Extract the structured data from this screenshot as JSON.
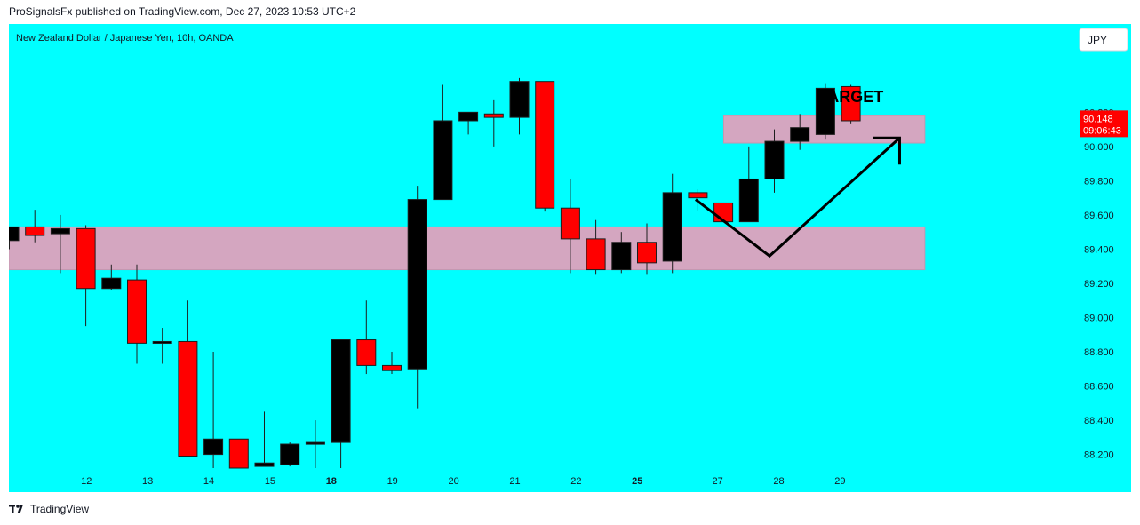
{
  "header": {
    "published": "ProSignalsFx published on TradingView.com, Dec 27, 2023 10:53 UTC+2"
  },
  "footer": {
    "brand": "TradingView"
  },
  "colors": {
    "background": "#00ffff",
    "zone": "#d4a6c0",
    "bull": "#000000",
    "bear": "#ff0000",
    "price_tag": "#ff0000"
  },
  "chart_data": {
    "type": "candlestick",
    "title": "New Zealand Dollar / Japanese Yen, 10h, OANDA",
    "currency_button": "JPY",
    "ylim": [
      88.12,
      90.56
    ],
    "y_ticks": [
      "90.200",
      "90.000",
      "89.800",
      "89.600",
      "89.400",
      "89.200",
      "89.000",
      "88.800",
      "88.600",
      "88.400",
      "88.200"
    ],
    "x_labels": [
      {
        "label": "12",
        "pos": 4,
        "bold": false
      },
      {
        "label": "13",
        "pos": 6.4,
        "bold": false
      },
      {
        "label": "14",
        "pos": 8.8,
        "bold": false
      },
      {
        "label": "15",
        "pos": 11.2,
        "bold": false
      },
      {
        "label": "18",
        "pos": 13.6,
        "bold": true
      },
      {
        "label": "19",
        "pos": 16,
        "bold": false
      },
      {
        "label": "20",
        "pos": 18.4,
        "bold": false
      },
      {
        "label": "21",
        "pos": 20.8,
        "bold": false
      },
      {
        "label": "22",
        "pos": 23.2,
        "bold": false
      },
      {
        "label": "25",
        "pos": 25.6,
        "bold": true
      },
      {
        "label": "27",
        "pos": 28.75,
        "bold": false
      },
      {
        "label": "28",
        "pos": 31.15,
        "bold": false
      },
      {
        "label": "29",
        "pos": 33.55,
        "bold": false
      }
    ],
    "candles": [
      {
        "o": 89.45,
        "h": 89.53,
        "l": 89.4,
        "c": 89.53
      },
      {
        "o": 89.53,
        "h": 89.63,
        "l": 89.44,
        "c": 89.48
      },
      {
        "o": 89.49,
        "h": 89.6,
        "l": 89.26,
        "c": 89.52
      },
      {
        "o": 89.52,
        "h": 89.54,
        "l": 88.95,
        "c": 89.17
      },
      {
        "o": 89.17,
        "h": 89.31,
        "l": 89.16,
        "c": 89.23
      },
      {
        "o": 89.22,
        "h": 89.31,
        "l": 88.73,
        "c": 88.85
      },
      {
        "o": 88.85,
        "h": 88.94,
        "l": 88.73,
        "c": 88.86
      },
      {
        "o": 88.86,
        "h": 89.1,
        "l": 88.19,
        "c": 88.19
      },
      {
        "o": 88.2,
        "h": 88.8,
        "l": 88.12,
        "c": 88.29
      },
      {
        "o": 88.29,
        "h": 88.29,
        "l": 88.12,
        "c": 88.12
      },
      {
        "o": 88.13,
        "h": 88.45,
        "l": 88.13,
        "c": 88.15
      },
      {
        "o": 88.14,
        "h": 88.27,
        "l": 88.13,
        "c": 88.26
      },
      {
        "o": 88.26,
        "h": 88.4,
        "l": 88.12,
        "c": 88.27
      },
      {
        "o": 88.27,
        "h": 88.87,
        "l": 88.12,
        "c": 88.87
      },
      {
        "o": 88.87,
        "h": 89.1,
        "l": 88.67,
        "c": 88.72
      },
      {
        "o": 88.72,
        "h": 88.8,
        "l": 88.67,
        "c": 88.69
      },
      {
        "o": 88.7,
        "h": 89.77,
        "l": 88.47,
        "c": 89.69
      },
      {
        "o": 89.69,
        "h": 90.36,
        "l": 89.69,
        "c": 90.15
      },
      {
        "o": 90.15,
        "h": 90.2,
        "l": 90.07,
        "c": 90.2
      },
      {
        "o": 90.19,
        "h": 90.27,
        "l": 90.0,
        "c": 90.17
      },
      {
        "o": 90.17,
        "h": 90.4,
        "l": 90.07,
        "c": 90.38
      },
      {
        "o": 90.38,
        "h": 90.38,
        "l": 89.62,
        "c": 89.64
      },
      {
        "o": 89.64,
        "h": 89.81,
        "l": 89.26,
        "c": 89.46
      },
      {
        "o": 89.46,
        "h": 89.57,
        "l": 89.25,
        "c": 89.28
      },
      {
        "o": 89.28,
        "h": 89.5,
        "l": 89.26,
        "c": 89.44
      },
      {
        "o": 89.44,
        "h": 89.55,
        "l": 89.25,
        "c": 89.32
      },
      {
        "o": 89.33,
        "h": 89.84,
        "l": 89.26,
        "c": 89.73
      },
      {
        "o": 89.73,
        "h": 89.75,
        "l": 89.62,
        "c": 89.7
      },
      {
        "o": 89.67,
        "h": 89.67,
        "l": 89.56,
        "c": 89.56
      },
      {
        "o": 89.56,
        "h": 90.0,
        "l": 89.56,
        "c": 89.81
      },
      {
        "o": 89.81,
        "h": 90.1,
        "l": 89.73,
        "c": 90.03
      },
      {
        "o": 90.03,
        "h": 90.19,
        "l": 89.98,
        "c": 90.11
      },
      {
        "o": 90.07,
        "h": 90.37,
        "l": 90.04,
        "c": 90.34
      },
      {
        "o": 90.35,
        "h": 90.36,
        "l": 90.13,
        "c": 90.15
      }
    ],
    "zones": [
      {
        "from_index": 0,
        "to_index": 35.9,
        "y_low": 89.28,
        "y_high": 89.53
      },
      {
        "from_index": 28.5,
        "to_index": 35.9,
        "y_low": 90.02,
        "y_high": 90.18
      }
    ],
    "annotation_text": "TARGET",
    "annotation_text_anchor": {
      "x_index": 33.5,
      "y": 90.26
    },
    "arrow_path": [
      {
        "x_index": 27.4,
        "y": 89.69
      },
      {
        "x_index": 30.3,
        "y": 89.36
      },
      {
        "x_index": 35.4,
        "y": 90.05
      }
    ],
    "last_price": {
      "value": "90.148",
      "countdown": "09:06:43"
    }
  }
}
